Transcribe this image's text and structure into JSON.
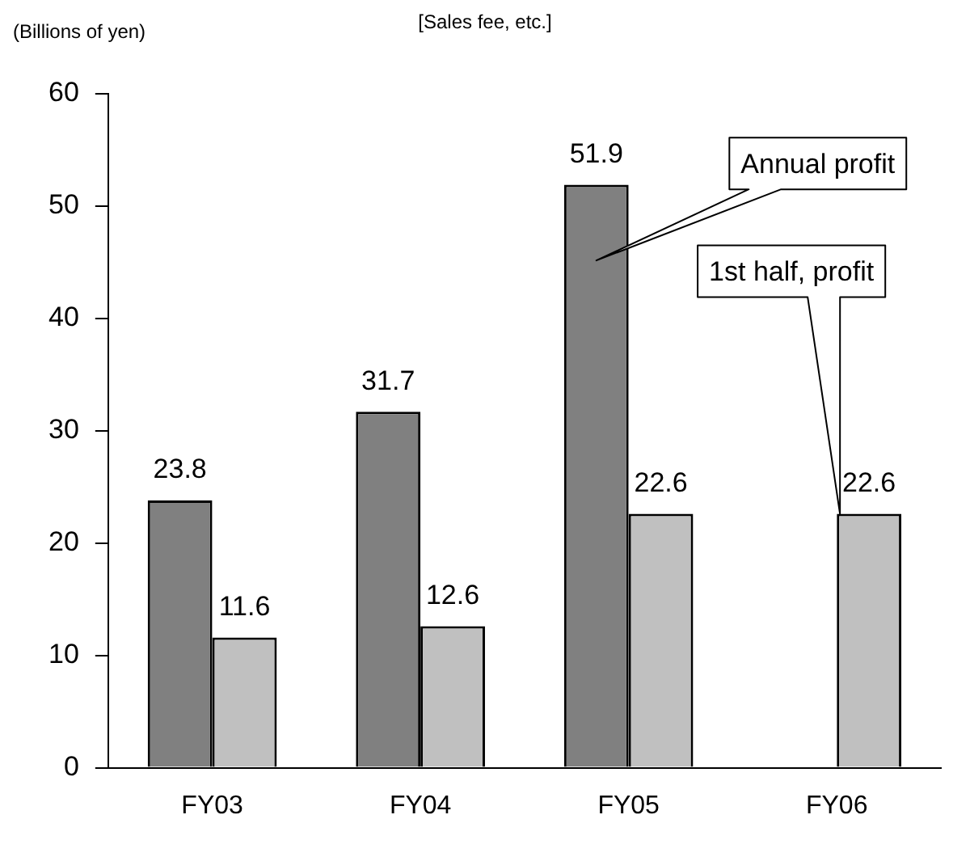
{
  "chart_data": {
    "type": "bar",
    "title": "[Sales fee, etc.]",
    "ylabel": "(Billions of yen)",
    "categories": [
      "FY03",
      "FY04",
      "FY05",
      "FY06"
    ],
    "series": [
      {
        "color": "#808080",
        "values": [
          23.8,
          31.7,
          51.9,
          null
        ]
      },
      {
        "color": "#c0c0c0",
        "values": [
          11.6,
          12.6,
          22.6,
          22.6
        ]
      }
    ],
    "ylim": [
      0,
      60
    ],
    "yticks": [
      0,
      10,
      20,
      30,
      40,
      50,
      60
    ],
    "grid": false,
    "legend": false,
    "data_labels": true,
    "annotations": [
      "Annual profit",
      "1st half, profit"
    ]
  }
}
